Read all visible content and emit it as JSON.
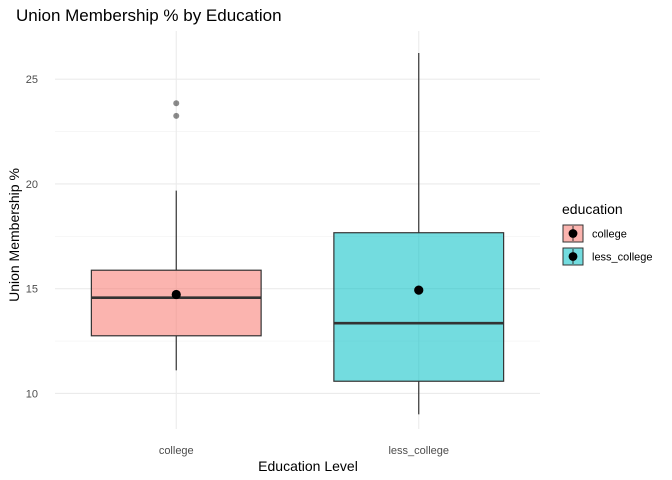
{
  "chart_data": {
    "type": "boxplot",
    "title": "Union Membership % by Education",
    "xlabel": "Education Level",
    "ylabel": "Union Membership %",
    "categories": [
      "college",
      "less_college"
    ],
    "ylim": [
      8.3,
      27.3
    ],
    "y_ticks": [
      10,
      15,
      20,
      25
    ],
    "grid": true,
    "boxes": [
      {
        "category": "college",
        "q1": 12.75,
        "median": 14.57,
        "q3": 15.88,
        "whisker_low": 11.1,
        "whisker_high": 19.68,
        "mean": 14.72,
        "outliers": [
          23.25,
          23.85
        ],
        "color": "#F8766D"
      },
      {
        "category": "less_college",
        "q1": 10.58,
        "median": 13.35,
        "q3": 17.67,
        "whisker_low": 9.0,
        "whisker_high": 26.25,
        "mean": 14.93,
        "outliers": [],
        "color": "#00BFC4"
      }
    ],
    "legend": {
      "title": "education",
      "placement": "right",
      "entries": [
        "college",
        "less_college"
      ]
    }
  }
}
